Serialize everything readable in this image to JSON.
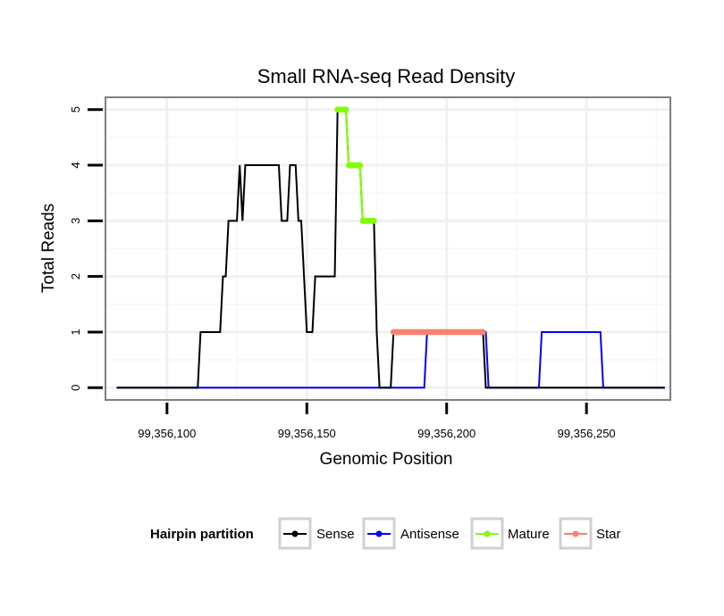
{
  "chart_data": {
    "type": "line",
    "title": "Small RNA-seq Read Density",
    "xlabel": "Genomic Position",
    "ylabel": "Total Reads",
    "xlim": [
      99356078,
      99356280
    ],
    "ylim": [
      -0.22,
      5.22
    ],
    "x_ticks": [
      99356100,
      99356150,
      99356200,
      99356250
    ],
    "x_tick_labels": [
      "99,356,100",
      "99,356,150",
      "99,356,200",
      "99,356,250"
    ],
    "y_ticks": [
      0,
      1,
      2,
      3,
      4,
      5
    ],
    "y_tick_labels": [
      "0",
      "1",
      "2",
      "3",
      "4",
      "5"
    ],
    "grid": true,
    "legend": {
      "title": "Hairpin partition",
      "position": "bottom",
      "entries": [
        "Sense",
        "Antisense",
        "Mature",
        "Star"
      ]
    },
    "series": [
      {
        "name": "Antisense",
        "color": "#0000ff",
        "points": [
          [
            99356082,
            0
          ],
          [
            99356192,
            0
          ],
          [
            99356193,
            1
          ],
          [
            99356214,
            1
          ],
          [
            99356215,
            0
          ],
          [
            99356233,
            0
          ],
          [
            99356234,
            1
          ],
          [
            99356255,
            1
          ],
          [
            99356256,
            0
          ],
          [
            99356278,
            0
          ]
        ]
      },
      {
        "name": "Sense",
        "color": "#000000",
        "points": [
          [
            99356082,
            0
          ],
          [
            99356111,
            0
          ],
          [
            99356112,
            1
          ],
          [
            99356119,
            1
          ],
          [
            99356120,
            2
          ],
          [
            99356121,
            2
          ],
          [
            99356122,
            3
          ],
          [
            99356125,
            3
          ],
          [
            99356126,
            4
          ],
          [
            99356127,
            3
          ],
          [
            99356128,
            4
          ],
          [
            99356140,
            4
          ],
          [
            99356141,
            3
          ],
          [
            99356143,
            3
          ],
          [
            99356144,
            4
          ],
          [
            99356146,
            4
          ],
          [
            99356147,
            3
          ],
          [
            99356148,
            3
          ],
          [
            99356149,
            2
          ],
          [
            99356150,
            1
          ],
          [
            99356152,
            1
          ],
          [
            99356153,
            2
          ],
          [
            99356160,
            2
          ],
          [
            99356161,
            5
          ],
          [
            99356164,
            5
          ],
          [
            99356165,
            4
          ],
          [
            99356169,
            4
          ],
          [
            99356170,
            3
          ],
          [
            99356174,
            3
          ],
          [
            99356175,
            1
          ],
          [
            99356176,
            0
          ],
          [
            99356180,
            0
          ],
          [
            99356181,
            1
          ],
          [
            99356213,
            1
          ],
          [
            99356214,
            0
          ],
          [
            99356278,
            0
          ]
        ]
      },
      {
        "name": "Mature",
        "color": "#7fff00",
        "points": [
          [
            99356161,
            5
          ],
          [
            99356164,
            5
          ],
          [
            99356165,
            4
          ],
          [
            99356169,
            4
          ],
          [
            99356170,
            3
          ],
          [
            99356174,
            3
          ]
        ]
      },
      {
        "name": "Star",
        "color": "#fa8072",
        "points": [
          [
            99356181,
            1
          ],
          [
            99356213,
            1
          ]
        ]
      }
    ]
  }
}
